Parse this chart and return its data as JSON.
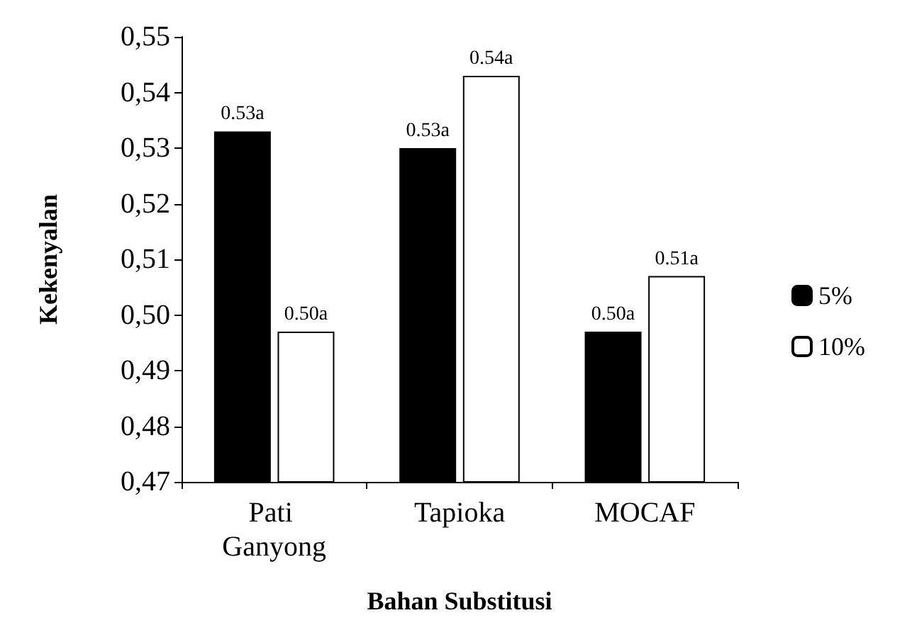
{
  "chart_data": {
    "type": "bar",
    "xlabel": "Bahan Substitusi",
    "ylabel": "Kekenyalan",
    "categories": [
      "Pati Ganyong",
      "Tapioka",
      "MOCAF"
    ],
    "series": [
      {
        "name": "5%",
        "color": "#000000",
        "values": [
          0.533,
          0.53,
          0.497
        ],
        "value_labels": [
          "0.53a",
          "0.53a",
          "0.50a"
        ]
      },
      {
        "name": "10%",
        "color": "#ffffff",
        "values": [
          0.497,
          0.543,
          0.507
        ],
        "value_labels": [
          "0.50a",
          "0.54a",
          "0.51a"
        ]
      }
    ],
    "ylim": [
      0.47,
      0.55
    ],
    "yticks": [
      {
        "value": 0.47,
        "label": "0,47"
      },
      {
        "value": 0.48,
        "label": "0,48"
      },
      {
        "value": 0.49,
        "label": "0,49"
      },
      {
        "value": 0.5,
        "label": "0,50"
      },
      {
        "value": 0.51,
        "label": "0,51"
      },
      {
        "value": 0.52,
        "label": "0,52"
      },
      {
        "value": 0.53,
        "label": "0,53"
      },
      {
        "value": 0.54,
        "label": "0,54"
      },
      {
        "value": 0.55,
        "label": "0,55"
      }
    ],
    "grid": false,
    "legend": "right"
  }
}
